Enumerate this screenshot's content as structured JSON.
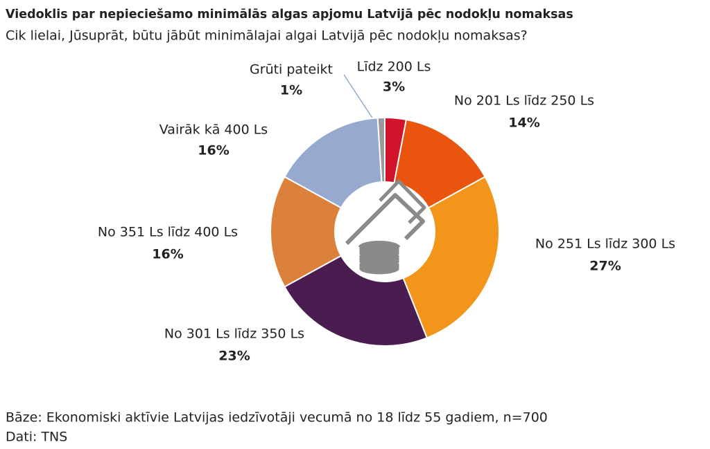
{
  "chart_data": {
    "type": "pie",
    "title": "Viedoklis par nepieciešamo minimālās algas apjomu Latvijā pēc nodokļu nomaksas",
    "subtitle": "Cik lielai, Jūsuprāt, būtu jābūt minimālajai algai Latvijā pēc nodokļu nomaksas?",
    "categories": [
      "Līdz 200 Ls",
      "No 201 Ls līdz 250 Ls",
      "No 251 Ls līdz 300 Ls",
      "No 301 Ls līdz 350 Ls",
      "No 351 Ls līdz 400 Ls",
      "Vairāk kā 400 Ls",
      "Grūti pateikt"
    ],
    "values": [
      3,
      14,
      27,
      23,
      16,
      16,
      1
    ],
    "value_labels": [
      "3%",
      "14%",
      "27%",
      "23%",
      "16%",
      "16%",
      "1%"
    ],
    "colors": [
      "#d0122a",
      "#e9540e",
      "#f3941b",
      "#4b1c4f",
      "#db813b",
      "#96aad0",
      "#9a9a9a"
    ],
    "notes": [
      "Bāze: Ekonomiski aktīvie Latvijas iedzīvotāji vecumā no 18 līdz 55 gadiem, n=700",
      "Dati: TNS"
    ]
  }
}
